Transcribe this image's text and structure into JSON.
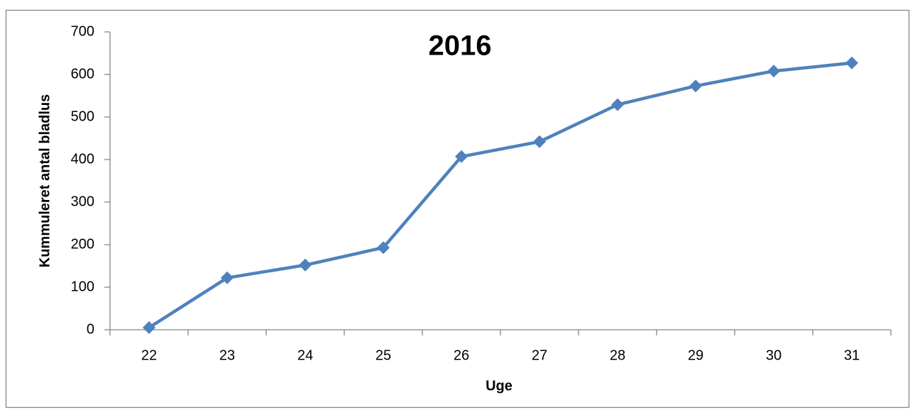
{
  "chart_data": {
    "type": "line",
    "title": "2016",
    "x_label": "Uge",
    "y_label": "Kummuleret antal bladlus",
    "categories": [
      "22",
      "23",
      "24",
      "25",
      "26",
      "27",
      "28",
      "29",
      "30",
      "31"
    ],
    "series": [
      {
        "color": "#4f81bd",
        "values": [
          5,
          122,
          152,
          193,
          407,
          442,
          529,
          573,
          608,
          627
        ]
      }
    ],
    "ylim": [
      0,
      700
    ],
    "yticks": [
      0,
      100,
      200,
      300,
      400,
      500,
      600,
      700
    ],
    "grid": false
  }
}
